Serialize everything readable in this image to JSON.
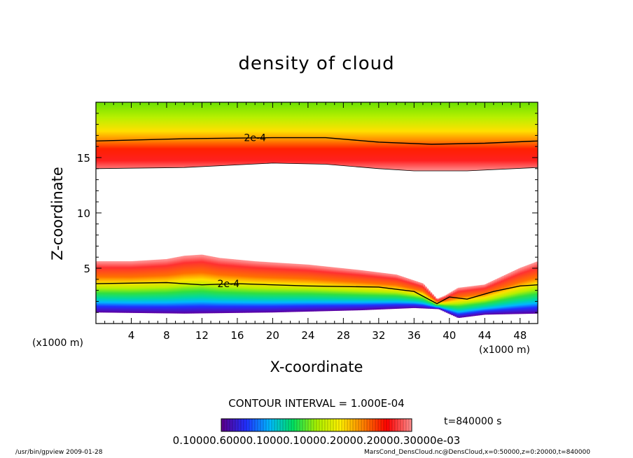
{
  "chart_data": {
    "type": "heatmap",
    "title": "density of cloud",
    "xlabel": "X-coordinate",
    "ylabel": "Z-coordinate",
    "x_unit": "(x1000 m)",
    "xlim": [
      0,
      50
    ],
    "ylim": [
      0,
      20
    ],
    "x_ticks": [
      4,
      8,
      12,
      16,
      20,
      24,
      28,
      32,
      36,
      40,
      44,
      48
    ],
    "y_ticks": [
      5,
      10,
      15
    ],
    "colormap": [
      "#5a0090",
      "#2030ff",
      "#00b8ff",
      "#00e060",
      "#a8f000",
      "#fff000",
      "#ff8000",
      "#ff0000",
      "#ff8888"
    ],
    "upper_layer": {
      "top": [
        [
          0,
          20
        ],
        [
          50,
          20
        ]
      ],
      "bottom": [
        [
          0,
          14.0
        ],
        [
          10,
          14.1
        ],
        [
          20,
          14.5
        ],
        [
          26,
          14.4
        ],
        [
          32,
          14.0
        ],
        [
          36,
          13.8
        ],
        [
          42,
          13.8
        ],
        [
          50,
          14.1
        ]
      ],
      "contour_2e4": [
        [
          0,
          16.5
        ],
        [
          10,
          16.7
        ],
        [
          20,
          16.8
        ],
        [
          26,
          16.8
        ],
        [
          32,
          16.4
        ],
        [
          38,
          16.2
        ],
        [
          44,
          16.3
        ],
        [
          50,
          16.5
        ]
      ]
    },
    "lower_layer": {
      "top": [
        [
          0,
          5.6
        ],
        [
          4,
          5.6
        ],
        [
          8,
          5.8
        ],
        [
          10,
          6.1
        ],
        [
          12,
          6.2
        ],
        [
          14,
          5.9
        ],
        [
          18,
          5.6
        ],
        [
          24,
          5.3
        ],
        [
          30,
          4.8
        ],
        [
          34,
          4.4
        ],
        [
          37,
          3.6
        ],
        [
          38.6,
          2.2
        ],
        [
          39.5,
          2.5
        ],
        [
          41,
          3.2
        ],
        [
          44,
          3.5
        ],
        [
          48,
          5.0
        ],
        [
          50,
          5.6
        ]
      ],
      "bottom": [
        [
          0,
          1.0
        ],
        [
          10,
          0.9
        ],
        [
          20,
          1.0
        ],
        [
          30,
          1.2
        ],
        [
          36,
          1.4
        ],
        [
          38.8,
          1.3
        ],
        [
          41,
          0.5
        ],
        [
          44,
          0.8
        ],
        [
          50,
          0.9
        ]
      ],
      "contour_2e4": [
        [
          0,
          3.6
        ],
        [
          8,
          3.7
        ],
        [
          12,
          3.5
        ],
        [
          16,
          3.6
        ],
        [
          24,
          3.4
        ],
        [
          32,
          3.3
        ],
        [
          36,
          2.9
        ],
        [
          38.6,
          1.8
        ],
        [
          40,
          2.4
        ],
        [
          42,
          2.2
        ],
        [
          45,
          2.9
        ],
        [
          48,
          3.4
        ],
        [
          50,
          3.5
        ]
      ]
    },
    "contour_labels": [
      {
        "text": "2e-4",
        "x": 18,
        "z": 16.8
      },
      {
        "text": "2e-4",
        "x": 15,
        "z": 3.6
      }
    ],
    "contour_interval": "CONTOUR INTERVAL = 1.000E-04",
    "colorbar_labels": "0.10000.60000.10000.10000.20000.20000.30000e-03",
    "time": "t=840000 s",
    "footer_left": "/usr/bin/gpview  2009-01-28",
    "footer_right": "MarsCond_DensCloud.nc@DensCloud,x=0:50000,z=0:20000,t=840000"
  }
}
